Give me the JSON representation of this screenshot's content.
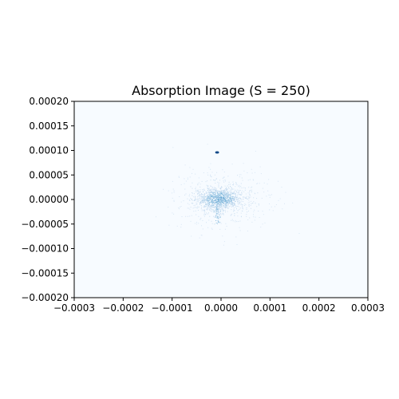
{
  "chart_data": {
    "type": "heatmap",
    "title": "Absorption Image (S = 250)",
    "xlabel": "",
    "ylabel": "",
    "xlim": [
      -0.0003,
      0.0003
    ],
    "ylim": [
      -0.0002,
      0.0002
    ],
    "x_ticks": [
      -0.0003,
      -0.0002,
      -0.0001,
      0.0,
      0.0001,
      0.0002,
      0.0003
    ],
    "x_tick_labels": [
      "−0.0003",
      "−0.0002",
      "−0.0001",
      "0.0000",
      "0.0001",
      "0.0002",
      "0.0003"
    ],
    "y_ticks": [
      0.0002,
      0.00015,
      0.0001,
      5e-05,
      0.0,
      -5e-05,
      -0.0001,
      -0.00015,
      -0.0002
    ],
    "y_tick_labels": [
      "0.00020",
      "0.00015",
      "0.00010",
      "0.00005",
      "0.00000",
      "−0.00005",
      "−0.00010",
      "−0.00015",
      "−0.00020"
    ],
    "colormap": "Blues",
    "background_color": "#f7fbff",
    "features": [
      {
        "name": "central-atom-cloud",
        "center": [
          -5e-06,
          2e-06
        ],
        "sigma": [
          2.5e-05,
          1.2e-05
        ],
        "peak_intensity": 0.35
      },
      {
        "name": "diffuse-halo",
        "center": [
          0.0,
          0.0
        ],
        "sigma": [
          5e-05,
          3e-05
        ],
        "peak_intensity": 0.12
      },
      {
        "name": "bright-spot",
        "center": [
          -8e-06,
          9.6e-05
        ],
        "sigma": [
          4e-06,
          1.5e-06
        ],
        "peak_intensity": 0.9
      }
    ],
    "grid": false
  }
}
